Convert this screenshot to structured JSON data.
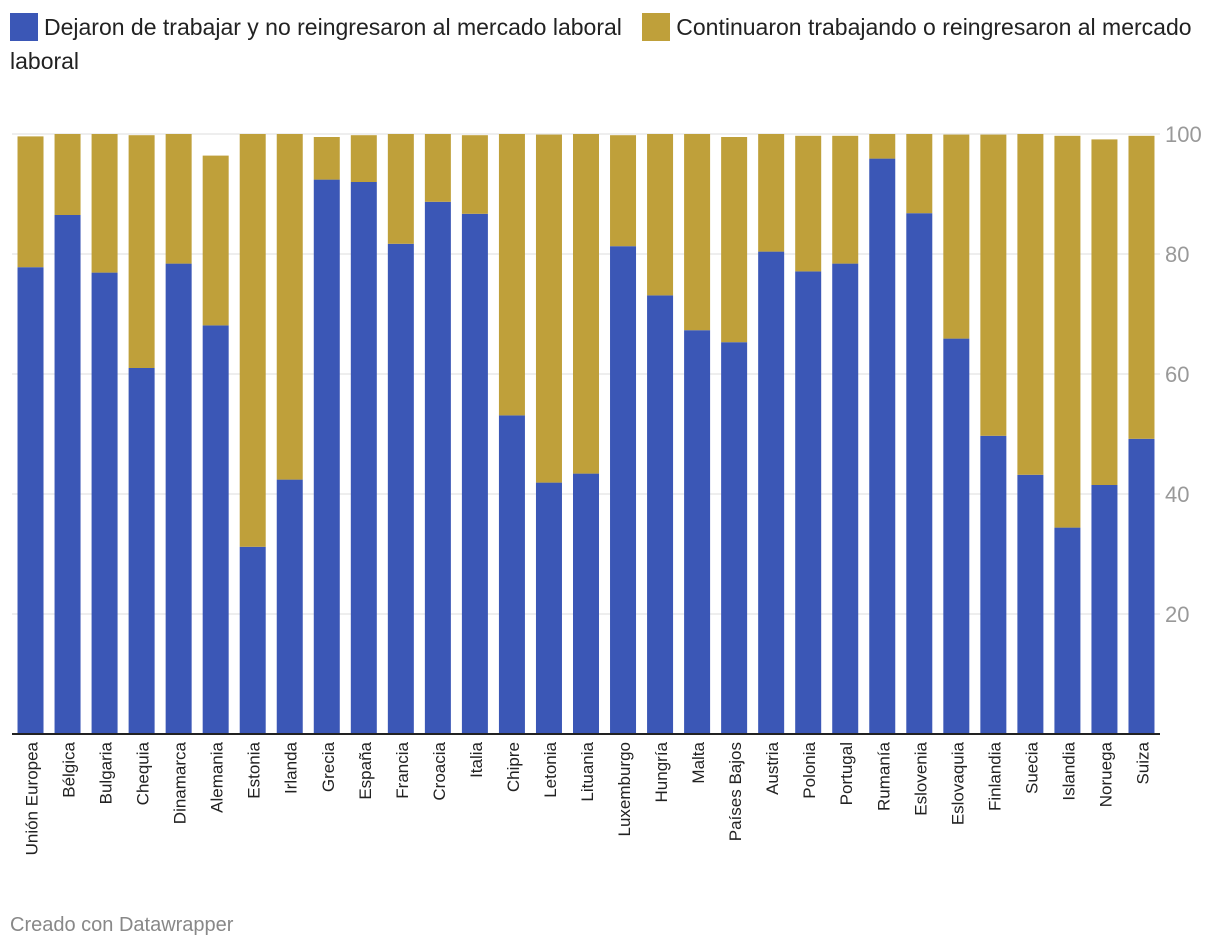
{
  "colors": {
    "left": "#3b57b6",
    "continued": "#bfa03a",
    "grid": "#dddddd",
    "axis": "#222222",
    "tick": "#999999"
  },
  "legend": {
    "left_label": "Dejaron de trabajar y no reingresaron al mercado laboral",
    "continued_label": "Continuaron trabajando o reingresaron al mercado laboral"
  },
  "footer": {
    "credit": "Creado con Datawrapper"
  },
  "chart_data": {
    "type": "bar",
    "stacked": true,
    "title": "",
    "xlabel": "",
    "ylabel": "",
    "ylim": [
      0,
      100
    ],
    "yticks": [
      20,
      40,
      60,
      80,
      100
    ],
    "grid": true,
    "legend_position": "top-left",
    "categories": [
      "Unión Europea",
      "Bélgica",
      "Bulgaria",
      "Chequia",
      "Dinamarca",
      "Alemania",
      "Estonia",
      "Irlanda",
      "Grecia",
      "España",
      "Francia",
      "Croacia",
      "Italia",
      "Chipre",
      "Letonia",
      "Lituania",
      "Luxemburgo",
      "Hungría",
      "Malta",
      "Países Bajos",
      "Austria",
      "Polonia",
      "Portugal",
      "Rumanía",
      "Eslovenia",
      "Eslovaquia",
      "Finlandia",
      "Suecia",
      "Islandia",
      "Noruega",
      "Suiza"
    ],
    "series": [
      {
        "name": "Dejaron de trabajar y no reingresaron al mercado laboral",
        "values": [
          77.8,
          86.5,
          76.9,
          61.0,
          78.4,
          68.1,
          31.2,
          42.4,
          92.4,
          92.0,
          81.7,
          88.7,
          86.7,
          53.1,
          41.9,
          43.4,
          81.3,
          73.1,
          67.3,
          65.3,
          80.4,
          77.1,
          78.4,
          95.9,
          86.8,
          65.9,
          49.7,
          43.2,
          34.4,
          41.5,
          49.2
        ]
      },
      {
        "name": "Continuaron trabajando o reingresaron al mercado laboral",
        "values": [
          21.8,
          13.5,
          23.1,
          38.8,
          21.6,
          28.3,
          68.8,
          57.6,
          7.1,
          7.8,
          18.3,
          11.3,
          13.1,
          46.9,
          58.0,
          56.6,
          18.5,
          26.9,
          32.7,
          34.2,
          19.6,
          22.6,
          21.3,
          4.1,
          13.2,
          34.0,
          50.2,
          56.8,
          65.3,
          57.6,
          50.5
        ]
      }
    ]
  }
}
